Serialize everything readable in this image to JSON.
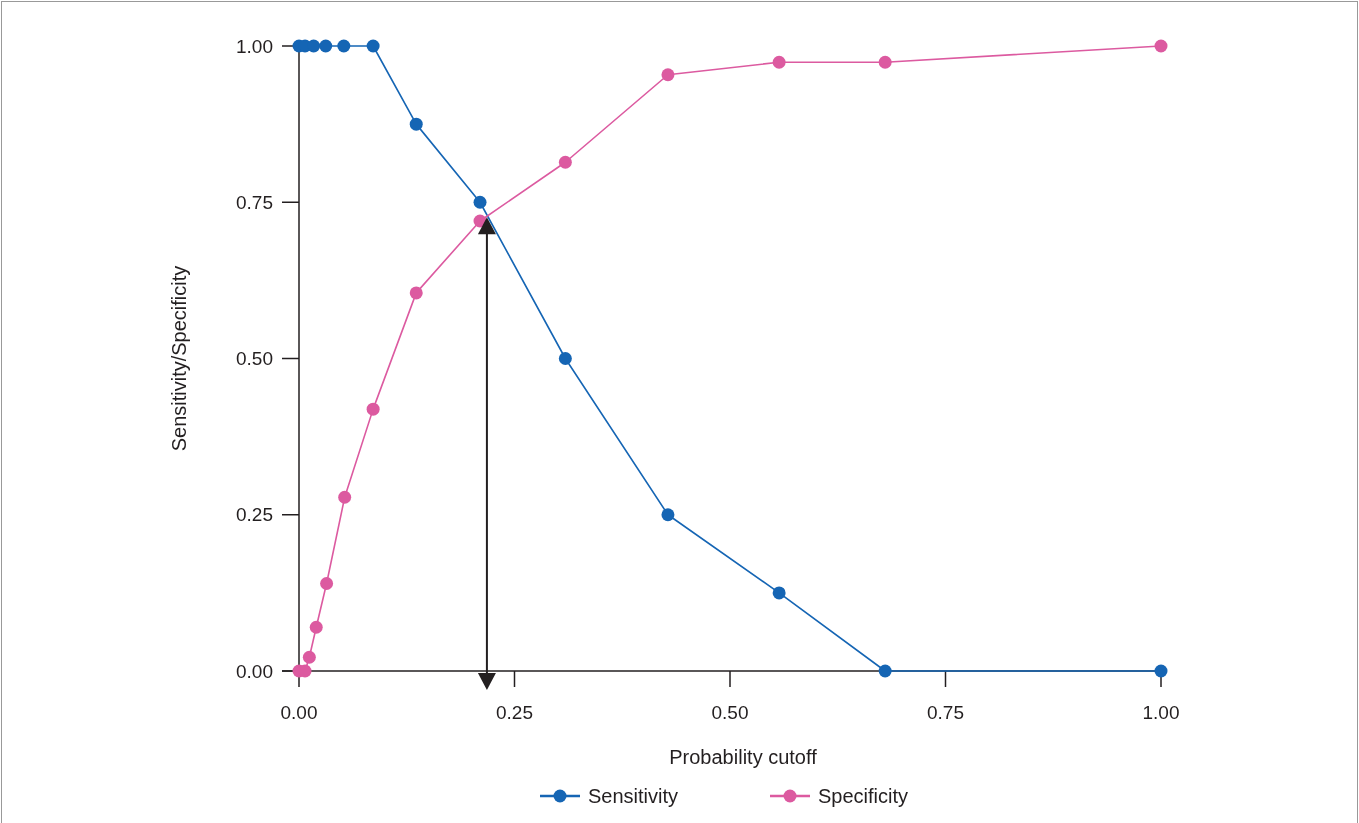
{
  "chart_data": {
    "type": "line",
    "xlabel": "Probability cutoff",
    "ylabel": "Sensitivity/Specificity",
    "xlim": [
      0,
      1
    ],
    "ylim": [
      0,
      1
    ],
    "xticks": [
      {
        "value": 0,
        "label": "0.00"
      },
      0.25,
      {
        "value": 0.5,
        "label": "0.50"
      },
      0.75,
      {
        "value": 1,
        "label": "1.00"
      }
    ],
    "yticks": [
      {
        "value": 0,
        "label": "0.00"
      },
      0.25,
      {
        "value": 0.5,
        "label": "0.50"
      },
      0.75,
      {
        "value": 1,
        "label": "1.00"
      }
    ],
    "series": [
      {
        "name": "Sensitivity",
        "color": "#1565b4",
        "x": [
          0,
          0.007,
          0.017,
          0.031,
          0.052,
          0.086,
          0.136,
          0.21,
          0.309,
          0.428,
          0.557,
          0.68,
          1.0
        ],
        "values": [
          1,
          1,
          1,
          1,
          1,
          1,
          0.875,
          0.75,
          0.5,
          0.25,
          0.125,
          0,
          0
        ]
      },
      {
        "name": "Specificity",
        "color": "#dc5aa0",
        "x": [
          0,
          0.007,
          0.012,
          0.02,
          0.032,
          0.053,
          0.086,
          0.136,
          0.21,
          0.309,
          0.428,
          0.557,
          0.68,
          1.0
        ],
        "values": [
          0,
          0,
          0.022,
          0.07,
          0.14,
          0.278,
          0.419,
          0.605,
          0.72,
          0.814,
          0.954,
          0.974,
          0.974,
          1
        ]
      }
    ],
    "ref_lines": [
      {
        "axis": "x",
        "value": 0.218,
        "color": "#231f20"
      }
    ],
    "marker": "circle",
    "legend": "bottom",
    "grid": false
  }
}
